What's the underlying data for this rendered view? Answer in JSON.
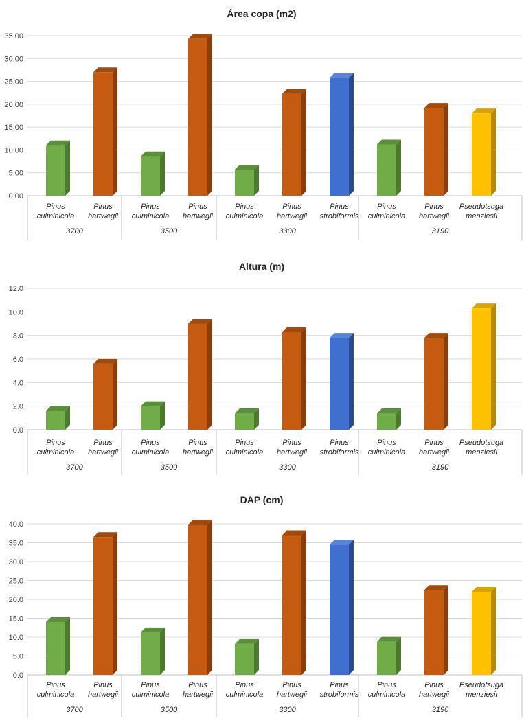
{
  "chart_data": [
    {
      "type": "bar",
      "title": "Área copa (m2)",
      "xlabel": "",
      "ylabel": "",
      "ylim": [
        0,
        35
      ],
      "yticks": [
        "0.00",
        "5.00",
        "10.00",
        "15.00",
        "20.00",
        "25.00",
        "30.00",
        "35.00"
      ],
      "groups": [
        {
          "label": "3700",
          "bars": [
            {
              "species": [
                "Pinus",
                "culminicola"
              ],
              "value": 11.0,
              "color": "green"
            },
            {
              "species": [
                "Pinus",
                "hartwegii"
              ],
              "value": 27.0,
              "color": "orange"
            }
          ]
        },
        {
          "label": "3500",
          "bars": [
            {
              "species": [
                "Pinus",
                "culminicola"
              ],
              "value": 8.6,
              "color": "green"
            },
            {
              "species": [
                "Pinus",
                "hartwegii"
              ],
              "value": 34.3,
              "color": "orange"
            }
          ]
        },
        {
          "label": "3300",
          "bars": [
            {
              "species": [
                "Pinus",
                "culminicola"
              ],
              "value": 5.7,
              "color": "green"
            },
            {
              "species": [
                "Pinus",
                "hartwegii"
              ],
              "value": 22.3,
              "color": "orange"
            },
            {
              "species": [
                "Pinus",
                "strobiformis"
              ],
              "value": 25.8,
              "color": "blue"
            }
          ]
        },
        {
          "label": "3190",
          "bars": [
            {
              "species": [
                "Pinus",
                "culminicola"
              ],
              "value": 11.2,
              "color": "green"
            },
            {
              "species": [
                "Pinus",
                "hartwegii"
              ],
              "value": 19.2,
              "color": "orange"
            },
            {
              "species": [
                "Pseudotsuga",
                "menziesii"
              ],
              "value": 18.0,
              "color": "yellow"
            }
          ]
        }
      ]
    },
    {
      "type": "bar",
      "title": "Altura (m)",
      "xlabel": "",
      "ylabel": "",
      "ylim": [
        0,
        12
      ],
      "yticks": [
        "0.0",
        "2.0",
        "4.0",
        "6.0",
        "8.0",
        "10.0",
        "12.0"
      ],
      "groups": [
        {
          "label": "3700",
          "bars": [
            {
              "species": [
                "Pinus",
                "culminicola"
              ],
              "value": 1.6,
              "color": "green"
            },
            {
              "species": [
                "Pinus",
                "hartwegii"
              ],
              "value": 5.6,
              "color": "orange"
            }
          ]
        },
        {
          "label": "3500",
          "bars": [
            {
              "species": [
                "Pinus",
                "culminicola"
              ],
              "value": 2.0,
              "color": "green"
            },
            {
              "species": [
                "Pinus",
                "hartwegii"
              ],
              "value": 9.0,
              "color": "orange"
            }
          ]
        },
        {
          "label": "3300",
          "bars": [
            {
              "species": [
                "Pinus",
                "culminicola"
              ],
              "value": 1.4,
              "color": "green"
            },
            {
              "species": [
                "Pinus",
                "hartwegii"
              ],
              "value": 8.3,
              "color": "orange"
            },
            {
              "species": [
                "Pinus",
                "strobiformis"
              ],
              "value": 7.8,
              "color": "blue"
            }
          ]
        },
        {
          "label": "3190",
          "bars": [
            {
              "species": [
                "Pinus",
                "culminicola"
              ],
              "value": 1.4,
              "color": "green"
            },
            {
              "species": [
                "Pinus",
                "hartwegii"
              ],
              "value": 7.8,
              "color": "orange"
            },
            {
              "species": [
                "Pseudotsuga",
                "menziesii"
              ],
              "value": 10.3,
              "color": "yellow"
            }
          ]
        }
      ]
    },
    {
      "type": "bar",
      "title": "DAP (cm)",
      "xlabel": "",
      "ylabel": "",
      "ylim": [
        0,
        40
      ],
      "yticks": [
        "0.0",
        "5.0",
        "10.0",
        "15.0",
        "20.0",
        "25.0",
        "30.0",
        "35.0",
        "40.0"
      ],
      "groups": [
        {
          "label": "3700",
          "bars": [
            {
              "species": [
                "Pinus",
                "culminicola"
              ],
              "value": 14.0,
              "color": "green"
            },
            {
              "species": [
                "Pinus",
                "hartwegii"
              ],
              "value": 36.5,
              "color": "orange"
            }
          ]
        },
        {
          "label": "3500",
          "bars": [
            {
              "species": [
                "Pinus",
                "culminicola"
              ],
              "value": 11.3,
              "color": "green"
            },
            {
              "species": [
                "Pinus",
                "hartwegii"
              ],
              "value": 39.8,
              "color": "orange"
            }
          ]
        },
        {
          "label": "3300",
          "bars": [
            {
              "species": [
                "Pinus",
                "culminicola"
              ],
              "value": 8.2,
              "color": "green"
            },
            {
              "species": [
                "Pinus",
                "hartwegii"
              ],
              "value": 37.0,
              "color": "orange"
            },
            {
              "species": [
                "Pinus",
                "strobiformis"
              ],
              "value": 34.5,
              "color": "blue"
            }
          ]
        },
        {
          "label": "3190",
          "bars": [
            {
              "species": [
                "Pinus",
                "culminicola"
              ],
              "value": 8.8,
              "color": "green"
            },
            {
              "species": [
                "Pinus",
                "hartwegii"
              ],
              "value": 22.5,
              "color": "orange"
            },
            {
              "species": [
                "Pseudotsuga",
                "menziesii"
              ],
              "value": 22.0,
              "color": "yellow"
            }
          ]
        }
      ]
    }
  ],
  "colors": {
    "green": {
      "front": "#70ad47",
      "side": "#4e7a30",
      "top": "#5c8f3a"
    },
    "orange": {
      "front": "#c55a11",
      "side": "#8a3e0b",
      "top": "#a14a0e"
    },
    "blue": {
      "front": "#3f6fcf",
      "side": "#2a4c94",
      "top": "#5b84d6"
    },
    "yellow": {
      "front": "#ffc000",
      "side": "#b88a00",
      "top": "#d9a300"
    }
  }
}
